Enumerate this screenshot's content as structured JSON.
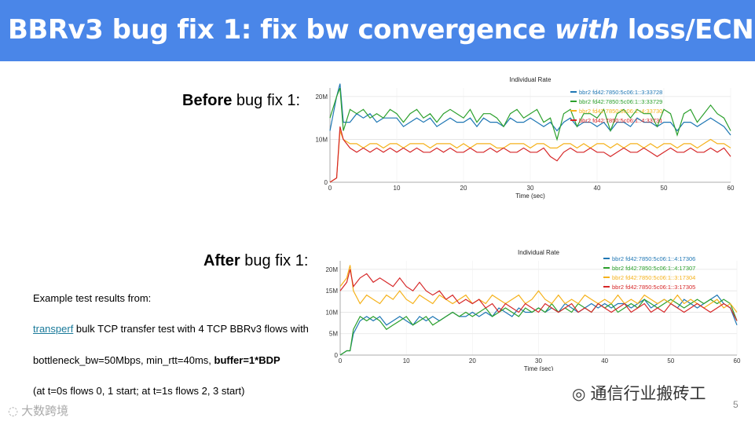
{
  "title": {
    "part1": "BBRv3 bug fix 1: fix bw convergence ",
    "part2": "with",
    "part3": " loss/ECN"
  },
  "before_label": {
    "bold": "Before",
    "rest": " bug fix 1:"
  },
  "after_label": {
    "bold": "After",
    "rest": " bug fix 1:"
  },
  "body": {
    "line1": "Example test results from:",
    "link": "transperf",
    "line2_rest": " bulk TCP transfer test with 4 TCP BBRv3 flows with",
    "line3_plain": "bottleneck_bw=50Mbps, min_rtt=40ms, ",
    "line3_bold": "buffer=1*BDP",
    "line4": "(at t=0s flows 0, 1 start; at t=1s flows 2, 3 start)"
  },
  "watermark_right": "通信行业搬砖工",
  "watermark_left": "大数跨境",
  "page_number": "5",
  "colors": {
    "title_bg": "#4a86e8",
    "series": [
      "#1f77b4",
      "#2ca02c",
      "#f5b21c",
      "#d62728"
    ]
  },
  "chart_data": [
    {
      "type": "line",
      "title": "Individual Rate",
      "xlabel": "Time (sec)",
      "xlim": [
        0,
        60
      ],
      "ylim": [
        0,
        22000000
      ],
      "x_ticks": [
        "0",
        "10",
        "20",
        "30",
        "40",
        "50",
        "60"
      ],
      "y_ticks": [
        "0",
        "10M",
        "20M"
      ],
      "y_tick_values": [
        0,
        10000000,
        20000000
      ],
      "legend_position": "top-right",
      "series": [
        {
          "name": "bbr2 fd42:7850:5c06:1::3:33728",
          "x": [
            0,
            1,
            1.5,
            2,
            3,
            4,
            5,
            6,
            7,
            8,
            9,
            10,
            11,
            12,
            13,
            14,
            15,
            16,
            17,
            18,
            19,
            20,
            21,
            22,
            23,
            24,
            25,
            26,
            27,
            28,
            29,
            30,
            31,
            32,
            33,
            34,
            35,
            36,
            37,
            38,
            39,
            40,
            41,
            42,
            43,
            44,
            45,
            46,
            47,
            48,
            49,
            50,
            51,
            52,
            53,
            54,
            55,
            56,
            57,
            58,
            59,
            60
          ],
          "y": [
            12,
            20,
            23,
            14,
            14,
            16,
            15,
            16,
            14,
            15,
            15,
            15,
            13,
            14,
            15,
            14,
            15,
            13,
            14,
            15,
            14,
            14,
            15,
            13,
            15,
            14,
            14,
            13,
            15,
            14,
            14,
            15,
            14,
            13,
            14,
            12,
            14,
            15,
            13,
            14,
            14,
            13,
            14,
            12,
            14,
            14,
            13,
            15,
            14,
            14,
            13,
            14,
            14,
            12,
            14,
            14,
            13,
            14,
            15,
            14,
            13,
            11
          ]
        },
        {
          "name": "bbr2 fd42:7850:5c06:1::3:33729",
          "x": [
            0,
            1,
            1.5,
            2,
            3,
            4,
            5,
            6,
            7,
            8,
            9,
            10,
            11,
            12,
            13,
            14,
            15,
            16,
            17,
            18,
            19,
            20,
            21,
            22,
            23,
            24,
            25,
            26,
            27,
            28,
            29,
            30,
            31,
            32,
            33,
            34,
            35,
            36,
            37,
            38,
            39,
            40,
            41,
            42,
            43,
            44,
            45,
            46,
            47,
            48,
            49,
            50,
            51,
            52,
            53,
            54,
            55,
            56,
            57,
            58,
            59,
            60
          ],
          "y": [
            15,
            20,
            22,
            12,
            17,
            16,
            17,
            15,
            16,
            15,
            17,
            16,
            14,
            16,
            17,
            15,
            16,
            14,
            16,
            17,
            16,
            15,
            17,
            14,
            16,
            16,
            15,
            13,
            16,
            17,
            15,
            16,
            17,
            14,
            15,
            10,
            16,
            17,
            13,
            16,
            16,
            15,
            17,
            12,
            16,
            17,
            15,
            17,
            16,
            16,
            13,
            17,
            16,
            11,
            16,
            17,
            14,
            16,
            18,
            16,
            15,
            12
          ]
        },
        {
          "name": "bbr2 fd42:7850:5c06:1::4:33730",
          "x": [
            0,
            1,
            1.5,
            2,
            3,
            4,
            5,
            6,
            7,
            8,
            9,
            10,
            11,
            12,
            13,
            14,
            15,
            16,
            17,
            18,
            19,
            20,
            21,
            22,
            23,
            24,
            25,
            26,
            27,
            28,
            29,
            30,
            31,
            32,
            33,
            34,
            35,
            36,
            37,
            38,
            39,
            40,
            41,
            42,
            43,
            44,
            45,
            46,
            47,
            48,
            49,
            50,
            51,
            52,
            53,
            54,
            55,
            56,
            57,
            58,
            59,
            60
          ],
          "y": [
            0,
            1,
            12,
            10,
            9,
            9,
            8,
            9,
            9,
            8,
            9,
            9,
            8,
            9,
            9,
            9,
            8,
            9,
            9,
            9,
            8,
            9,
            8,
            9,
            9,
            9,
            8,
            8,
            9,
            9,
            9,
            8,
            9,
            9,
            8,
            8,
            9,
            9,
            8,
            9,
            8,
            9,
            9,
            8,
            9,
            8,
            9,
            9,
            8,
            9,
            8,
            9,
            9,
            8,
            9,
            9,
            8,
            9,
            10,
            9,
            9,
            8
          ]
        },
        {
          "name": "bbr2 fd42:7850:5c06:1::4:33731",
          "x": [
            0,
            1,
            1.5,
            2,
            3,
            4,
            5,
            6,
            7,
            8,
            9,
            10,
            11,
            12,
            13,
            14,
            15,
            16,
            17,
            18,
            19,
            20,
            21,
            22,
            23,
            24,
            25,
            26,
            27,
            28,
            29,
            30,
            31,
            32,
            33,
            34,
            35,
            36,
            37,
            38,
            39,
            40,
            41,
            42,
            43,
            44,
            45,
            46,
            47,
            48,
            49,
            50,
            51,
            52,
            53,
            54,
            55,
            56,
            57,
            58,
            59,
            60
          ],
          "y": [
            0,
            1,
            13,
            10,
            8,
            7,
            8,
            7,
            8,
            7,
            8,
            7,
            8,
            7,
            8,
            7,
            7,
            8,
            7,
            8,
            7,
            7,
            8,
            7,
            7,
            8,
            7,
            8,
            7,
            7,
            8,
            7,
            7,
            8,
            6,
            5,
            7,
            8,
            7,
            7,
            8,
            7,
            7,
            6,
            7,
            8,
            7,
            7,
            8,
            7,
            6,
            7,
            8,
            7,
            7,
            8,
            7,
            7,
            8,
            7,
            8,
            6
          ]
        }
      ]
    },
    {
      "type": "line",
      "title": "Individual Rate",
      "xlabel": "Time (sec)",
      "xlim": [
        0,
        60
      ],
      "ylim": [
        0,
        22000000
      ],
      "x_ticks": [
        "0",
        "10",
        "20",
        "30",
        "40",
        "50",
        "60"
      ],
      "y_ticks": [
        "0",
        "5M",
        "10M",
        "15M",
        "20M"
      ],
      "y_tick_values": [
        0,
        5000000,
        10000000,
        15000000,
        20000000
      ],
      "legend_position": "top-right",
      "series": [
        {
          "name": "bbr2 fd42:7850:5c06:1::4:17306",
          "x": [
            0,
            1,
            1.5,
            2,
            3,
            4,
            5,
            6,
            7,
            8,
            9,
            10,
            11,
            12,
            13,
            14,
            15,
            16,
            17,
            18,
            19,
            20,
            21,
            22,
            23,
            24,
            25,
            26,
            27,
            28,
            29,
            30,
            31,
            32,
            33,
            34,
            35,
            36,
            37,
            38,
            39,
            40,
            41,
            42,
            43,
            44,
            45,
            46,
            47,
            48,
            49,
            50,
            51,
            52,
            53,
            54,
            55,
            56,
            57,
            58,
            59,
            60
          ],
          "y": [
            0,
            1,
            1,
            5,
            8,
            9,
            8,
            9,
            7,
            8,
            9,
            8,
            7,
            9,
            8,
            9,
            8,
            9,
            10,
            9,
            9,
            10,
            9,
            10,
            9,
            11,
            10,
            9,
            11,
            10,
            10,
            11,
            10,
            11,
            10,
            12,
            11,
            10,
            11,
            12,
            11,
            12,
            11,
            12,
            12,
            11,
            12,
            13,
            11,
            12,
            13,
            12,
            11,
            13,
            12,
            11,
            12,
            13,
            14,
            12,
            11,
            7
          ]
        },
        {
          "name": "bbr2 fd42:7850:5c06:1::4:17307",
          "x": [
            0,
            1,
            1.5,
            2,
            3,
            4,
            5,
            6,
            7,
            8,
            9,
            10,
            11,
            12,
            13,
            14,
            15,
            16,
            17,
            18,
            19,
            20,
            21,
            22,
            23,
            24,
            25,
            26,
            27,
            28,
            29,
            30,
            31,
            32,
            33,
            34,
            35,
            36,
            37,
            38,
            39,
            40,
            41,
            42,
            43,
            44,
            45,
            46,
            47,
            48,
            49,
            50,
            51,
            52,
            53,
            54,
            55,
            56,
            57,
            58,
            59,
            60
          ],
          "y": [
            0,
            1,
            1,
            6,
            9,
            8,
            9,
            8,
            6,
            7,
            8,
            9,
            7,
            8,
            9,
            7,
            8,
            9,
            10,
            9,
            10,
            9,
            10,
            11,
            9,
            10,
            11,
            10,
            9,
            11,
            10,
            11,
            10,
            12,
            10,
            11,
            10,
            12,
            11,
            10,
            12,
            11,
            12,
            10,
            11,
            12,
            11,
            13,
            12,
            11,
            12,
            13,
            12,
            11,
            12,
            13,
            12,
            13,
            12,
            13,
            12,
            8
          ]
        },
        {
          "name": "bbr2 fd42:7850:5c06:1::3:17304",
          "x": [
            0,
            1,
            1.5,
            2,
            3,
            4,
            5,
            6,
            7,
            8,
            9,
            10,
            11,
            12,
            13,
            14,
            15,
            16,
            17,
            18,
            19,
            20,
            21,
            22,
            23,
            24,
            25,
            26,
            27,
            28,
            29,
            30,
            31,
            32,
            33,
            34,
            35,
            36,
            37,
            38,
            39,
            40,
            41,
            42,
            43,
            44,
            45,
            46,
            47,
            48,
            49,
            50,
            51,
            52,
            53,
            54,
            55,
            56,
            57,
            58,
            59,
            60
          ],
          "y": [
            16,
            18,
            21,
            15,
            12,
            14,
            13,
            12,
            14,
            13,
            15,
            13,
            12,
            14,
            13,
            12,
            14,
            13,
            12,
            13,
            14,
            12,
            13,
            12,
            14,
            13,
            12,
            13,
            14,
            12,
            13,
            15,
            13,
            12,
            14,
            12,
            13,
            12,
            14,
            13,
            12,
            13,
            12,
            14,
            12,
            13,
            12,
            14,
            13,
            12,
            13,
            12,
            14,
            12,
            13,
            12,
            11,
            12,
            13,
            11,
            12,
            10
          ]
        },
        {
          "name": "bbr2 fd42:7850:5c06:1::3:17305",
          "x": [
            0,
            1,
            1.5,
            2,
            3,
            4,
            5,
            6,
            7,
            8,
            9,
            10,
            11,
            12,
            13,
            14,
            15,
            16,
            17,
            18,
            19,
            20,
            21,
            22,
            23,
            24,
            25,
            26,
            27,
            28,
            29,
            30,
            31,
            32,
            33,
            34,
            35,
            36,
            37,
            38,
            39,
            40,
            41,
            42,
            43,
            44,
            45,
            46,
            47,
            48,
            49,
            50,
            51,
            52,
            53,
            54,
            55,
            56,
            57,
            58,
            59,
            60
          ],
          "y": [
            15,
            17,
            20,
            16,
            18,
            19,
            17,
            18,
            17,
            16,
            18,
            16,
            15,
            17,
            15,
            14,
            15,
            13,
            14,
            12,
            13,
            12,
            13,
            11,
            12,
            10,
            12,
            11,
            10,
            12,
            11,
            10,
            12,
            11,
            10,
            11,
            12,
            10,
            11,
            10,
            12,
            11,
            10,
            11,
            12,
            10,
            11,
            12,
            10,
            11,
            10,
            12,
            11,
            10,
            11,
            12,
            11,
            10,
            11,
            12,
            11,
            8
          ]
        }
      ]
    }
  ]
}
